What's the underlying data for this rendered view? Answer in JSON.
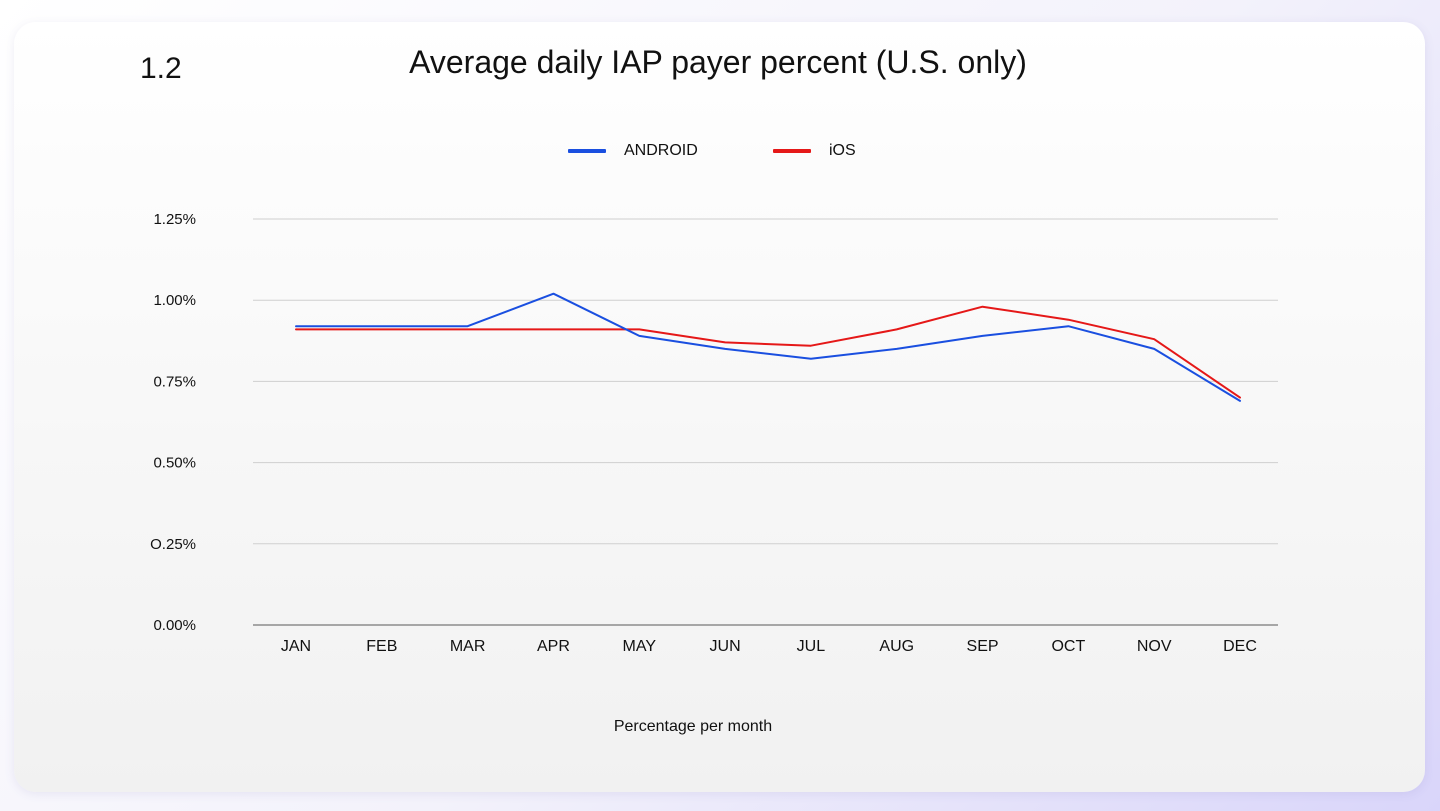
{
  "section_number": "1.2",
  "chart_data": {
    "type": "line",
    "title": "Average daily IAP payer percent (U.S. only)",
    "xlabel": "Percentage per month",
    "ylabel": "",
    "categories": [
      "JAN",
      "FEB",
      "MAR",
      "APR",
      "MAY",
      "JUN",
      "JUL",
      "AUG",
      "SEP",
      "OCT",
      "NOV",
      "DEC"
    ],
    "ylim": [
      0,
      1.25
    ],
    "yticks": [
      {
        "value": 1.25,
        "label": "1.25%"
      },
      {
        "value": 1.0,
        "label": "1.00%"
      },
      {
        "value": 0.75,
        "label": "0.75%"
      },
      {
        "value": 0.5,
        "label": "0.50%"
      },
      {
        "value": 0.25,
        "label": "O.25%"
      },
      {
        "value": 0.0,
        "label": "0.00%"
      }
    ],
    "grid": true,
    "legend_position": "top-center",
    "series": [
      {
        "name": "ANDROID",
        "color": "#1a4fe0",
        "values": [
          0.92,
          0.92,
          0.92,
          1.02,
          0.89,
          0.85,
          0.82,
          0.85,
          0.89,
          0.92,
          0.85,
          0.69
        ]
      },
      {
        "name": "iOS",
        "color": "#e51818",
        "values": [
          0.91,
          0.91,
          0.91,
          0.91,
          0.91,
          0.87,
          0.86,
          0.91,
          0.98,
          0.94,
          0.88,
          0.7
        ]
      }
    ]
  }
}
